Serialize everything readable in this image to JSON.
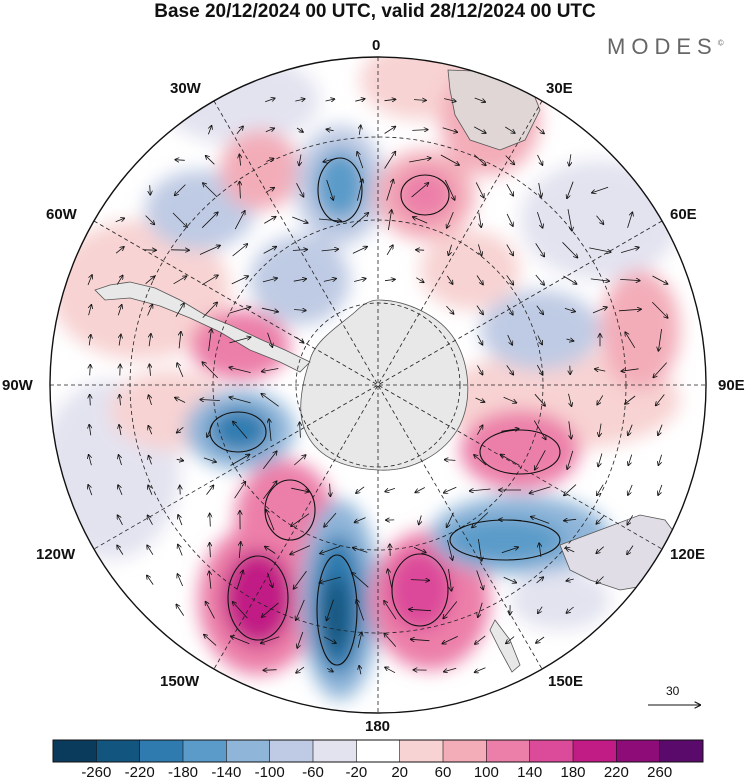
{
  "header": {
    "title": "Base 20/12/2024 00 UTC, valid 28/12/2024 00 UTC",
    "brand": "MODES",
    "brand_mark": "©"
  },
  "longitude_labels": {
    "lon_0": "0",
    "lon_30e": "30E",
    "lon_60e": "60E",
    "lon_90e": "90E",
    "lon_120e": "120E",
    "lon_150e": "150E",
    "lon_180": "180",
    "lon_150w": "150W",
    "lon_120w": "120W",
    "lon_90w": "90W",
    "lon_60w": "60W",
    "lon_30w": "30W"
  },
  "vector_reference": {
    "value": "30"
  },
  "colorbar": {
    "ticks": [
      "-260",
      "-220",
      "-180",
      "-140",
      "-100",
      "-60",
      "-20",
      "20",
      "60",
      "100",
      "140",
      "180",
      "220",
      "260"
    ],
    "colors": [
      "#0b3b5c",
      "#12557f",
      "#2f7bb0",
      "#5a9bc9",
      "#8fb5d9",
      "#bfcbe4",
      "#e3e3f0",
      "#ffffff",
      "#f8d3d3",
      "#f3adb9",
      "#ec7fa9",
      "#dc4a9a",
      "#c11c85",
      "#8e0c78",
      "#5a0a6a"
    ]
  },
  "colors": {
    "land": "#e8e8e8",
    "coast": "#555555",
    "grid": "#222222"
  }
}
